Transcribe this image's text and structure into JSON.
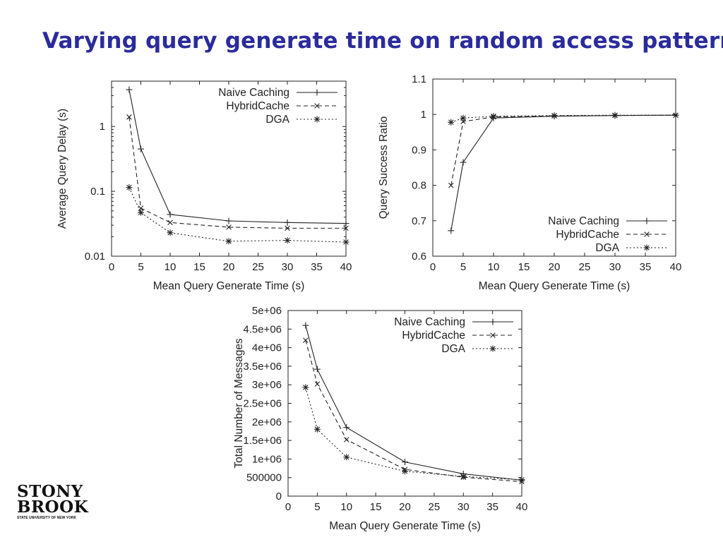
{
  "slide": {
    "title": "Varying query generate time on random access pattern"
  },
  "logo": {
    "line1": "STONY",
    "line2": "BROOK",
    "tagline": "STATE UNIVERSITY OF NEW YORK"
  },
  "chart_data": [
    {
      "type": "line",
      "xlabel": "Mean Query Generate Time (s)",
      "ylabel": "Average Query Delay (s)",
      "xlim": [
        0,
        40
      ],
      "ylim": [
        0.01,
        5
      ],
      "yscale": "log",
      "x_ticks": [
        0,
        5,
        10,
        15,
        20,
        25,
        30,
        35,
        40
      ],
      "y_ticks": [
        0.01,
        0.1,
        1
      ],
      "y_tick_labels": [
        "0.01",
        "0.1",
        "1"
      ],
      "legend_position": "top-right",
      "grid": false,
      "x": [
        3,
        5,
        10,
        20,
        30,
        40
      ],
      "series": [
        {
          "name": "Naive Caching",
          "marker": "plus",
          "dash": "solid",
          "values": [
            3.7,
            0.45,
            0.044,
            0.035,
            0.033,
            0.032
          ]
        },
        {
          "name": "HybridCache",
          "marker": "cross",
          "dash": "dashed",
          "values": [
            1.4,
            0.055,
            0.033,
            0.028,
            0.027,
            0.027
          ]
        },
        {
          "name": "DGA",
          "marker": "star",
          "dash": "dotted",
          "values": [
            0.115,
            0.047,
            0.023,
            0.017,
            0.0175,
            0.0165
          ]
        }
      ]
    },
    {
      "type": "line",
      "xlabel": "Mean Query Generate Time (s)",
      "ylabel": "Query Success Ratio",
      "xlim": [
        0,
        40
      ],
      "ylim": [
        0.6,
        1.1
      ],
      "x_ticks": [
        0,
        5,
        10,
        15,
        20,
        25,
        30,
        35,
        40
      ],
      "y_ticks": [
        0.6,
        0.7,
        0.8,
        0.9,
        1,
        1.1
      ],
      "y_tick_labels": [
        "0.6",
        "0.7",
        "0.8",
        "0.9",
        "1",
        "1.1"
      ],
      "legend_position": "bottom-right",
      "grid": false,
      "x": [
        3,
        5,
        10,
        20,
        30,
        40
      ],
      "series": [
        {
          "name": "Naive Caching",
          "marker": "plus",
          "dash": "solid",
          "values": [
            0.672,
            0.865,
            0.99,
            0.995,
            0.997,
            0.998
          ]
        },
        {
          "name": "HybridCache",
          "marker": "cross",
          "dash": "dashed",
          "values": [
            0.8,
            0.98,
            0.993,
            0.996,
            0.997,
            0.998
          ]
        },
        {
          "name": "DGA",
          "marker": "star",
          "dash": "dotted",
          "values": [
            0.978,
            0.99,
            0.995,
            0.997,
            0.998,
            0.998
          ]
        }
      ]
    },
    {
      "type": "line",
      "xlabel": "Mean Query Generate Time (s)",
      "ylabel": "Total Number of Messages",
      "xlim": [
        0,
        40
      ],
      "ylim": [
        0,
        5000000
      ],
      "x_ticks": [
        0,
        5,
        10,
        15,
        20,
        25,
        30,
        35,
        40
      ],
      "y_ticks": [
        0,
        500000,
        1000000,
        1500000,
        2000000,
        2500000,
        3000000,
        3500000,
        4000000,
        4500000,
        5000000
      ],
      "y_tick_labels": [
        "0",
        "500000",
        "1e+06",
        "1.5e+06",
        "2e+06",
        "2.5e+06",
        "3e+06",
        "3.5e+06",
        "4e+06",
        "4.5e+06",
        "5e+06"
      ],
      "legend_position": "top-right",
      "grid": false,
      "x": [
        3,
        5,
        10,
        20,
        30,
        40
      ],
      "series": [
        {
          "name": "Naive Caching",
          "marker": "plus",
          "dash": "solid",
          "values": [
            4600000,
            3420000,
            1850000,
            920000,
            600000,
            430000
          ]
        },
        {
          "name": "HybridCache",
          "marker": "cross",
          "dash": "dashed",
          "values": [
            4200000,
            3020000,
            1520000,
            720000,
            510000,
            390000
          ]
        },
        {
          "name": "DGA",
          "marker": "star",
          "dash": "dotted",
          "values": [
            2930000,
            1800000,
            1050000,
            670000,
            530000,
            440000
          ]
        }
      ]
    }
  ]
}
